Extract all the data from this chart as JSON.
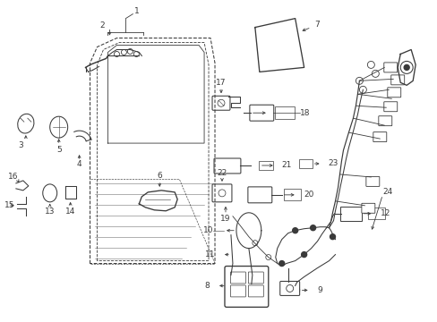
{
  "bg_color": "#ffffff",
  "line_color": "#3a3a3a",
  "figsize": [
    4.89,
    3.6
  ],
  "dpi": 100,
  "lw": 0.75,
  "fontsize": 6.5
}
